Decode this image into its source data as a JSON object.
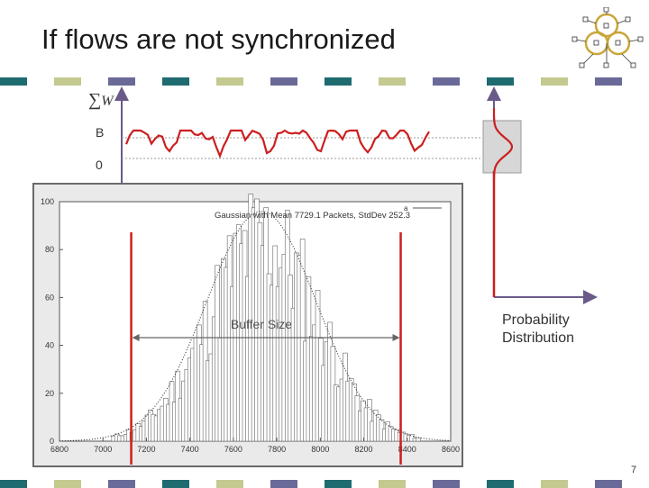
{
  "slide": {
    "title": "If flows are not synchronized",
    "page_number": "7",
    "sum_symbol": "∑",
    "sum_var": "W",
    "label_B": "B",
    "label_zero": "0",
    "buffer_label": "Buffer Size",
    "prob_label_line1": "Probability",
    "prob_label_line2": "Distribution",
    "legend_text": "Gaussian with Mean 7729.1 Packets, StdDev 252.3",
    "legend_mark": "a"
  },
  "colors": {
    "strip": [
      "#1e6b70",
      "#ffffff",
      "#c4c98f",
      "#ffffff",
      "#6a6a98",
      "#ffffff"
    ],
    "accent_red": "#cc1f1f",
    "axis_purple": "#6a5a8a"
  },
  "icons": [
    "network-logo-icon"
  ],
  "chart_data": {
    "type": "bar",
    "title": "",
    "legend": [
      "Gaussian with Mean 7729.1 Packets, StdDev 252.3"
    ],
    "mean": 7729.1,
    "stddev": 252.3,
    "xlim": [
      6800,
      8600
    ],
    "ylim": [
      0,
      100
    ],
    "x_ticks": [
      "6800",
      "7000",
      "7200",
      "7400",
      "7600",
      "7800",
      "8000",
      "8200",
      "8400",
      "8600"
    ],
    "y_ticks": [
      "0",
      "20",
      "40",
      "60",
      "80",
      "100"
    ],
    "buffer_markers": [
      7130,
      8370
    ]
  }
}
